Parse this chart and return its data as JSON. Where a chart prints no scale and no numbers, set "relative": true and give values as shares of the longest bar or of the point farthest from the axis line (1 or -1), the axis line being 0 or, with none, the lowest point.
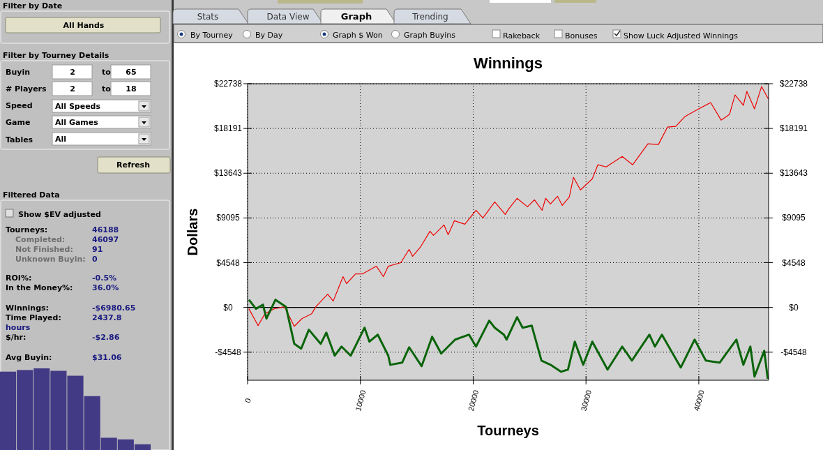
{
  "chart_data": [
    {
      "type": "line",
      "title": "Winnings",
      "xlabel": "Tourneys",
      "ylabel": "Dollars",
      "grid": true,
      "line_style": "solid",
      "marker": "none",
      "xlim": [
        0,
        46188
      ],
      "xticks": [
        0,
        10000,
        20000,
        30000,
        40000
      ],
      "ylim": [
        -7400,
        22738
      ],
      "yticks": [
        {
          "value": -4548,
          "label": "-$4548"
        },
        {
          "value": 0,
          "label": "$0"
        },
        {
          "value": 4548,
          "label": "$4548"
        },
        {
          "value": 9095,
          "label": "$9095"
        },
        {
          "value": 13643,
          "label": "$13643"
        },
        {
          "value": 18191,
          "label": "$18191"
        },
        {
          "value": 22738,
          "label": "$22738"
        }
      ],
      "y2lim": [
        -7400,
        22738
      ],
      "y2ticks": [
        {
          "value": -4548,
          "label": "-$4548"
        },
        {
          "value": 0,
          "label": "$0"
        },
        {
          "value": 4548,
          "label": "$4548"
        },
        {
          "value": 9095,
          "label": "$9095"
        },
        {
          "value": 13643,
          "label": "$13643"
        },
        {
          "value": 18191,
          "label": "$18191"
        },
        {
          "value": 22738,
          "label": "$22738"
        }
      ],
      "ref_lines": [
        {
          "axis": "y",
          "value": 0,
          "color": "#000000",
          "line_style": "solid"
        }
      ],
      "series": [
        {
          "color": "#ee0000",
          "x": [
            120,
            930,
            1540,
            2350,
            3270,
            4140,
            4810,
            5680,
            6050,
            7100,
            7590,
            8460,
            8770,
            9570,
            10190,
            11420,
            12040,
            12470,
            13580,
            14320,
            14630,
            15310,
            16170,
            16480,
            17410,
            17780,
            18330,
            19260,
            20250,
            20860,
            21910,
            22840,
            23150,
            23890,
            24810,
            25430,
            26110,
            26420,
            26850,
            27470,
            27900,
            28520,
            28890,
            29510,
            30560,
            31050,
            31790,
            33210,
            34140,
            35490,
            36420,
            37220,
            37960,
            38770,
            40000,
            41050,
            41980,
            42720,
            43210,
            43950,
            44260,
            44940,
            45560,
            46170
          ],
          "values": [
            -140,
            -1850,
            -640,
            -140,
            70,
            -1920,
            -1140,
            -640,
            70,
            1350,
            640,
            3130,
            2420,
            3410,
            3410,
            4190,
            3130,
            4190,
            4550,
            5900,
            5190,
            6110,
            7750,
            7320,
            8390,
            7390,
            8810,
            8460,
            9880,
            9100,
            10730,
            9450,
            10020,
            11090,
            10230,
            10940,
            9880,
            11090,
            10520,
            11300,
            10370,
            11230,
            13220,
            11940,
            13080,
            14500,
            14280,
            15350,
            14500,
            16630,
            16560,
            18330,
            18400,
            19400,
            20180,
            20820,
            19040,
            19610,
            21600,
            20540,
            21960,
            20180,
            22450,
            21180
          ]
        },
        {
          "color": "#0a640a",
          "x": [
            120,
            740,
            1360,
            1670,
            2470,
            3400,
            4140,
            4750,
            5430,
            6480,
            6980,
            7720,
            8330,
            9140,
            10370,
            10800,
            11540,
            12470,
            12650,
            13700,
            14320,
            15430,
            16360,
            17160,
            18400,
            19630,
            20250,
            21420,
            21910,
            22720,
            22960,
            23890,
            24380,
            25190,
            26050,
            26850,
            27780,
            28400,
            29010,
            29750,
            30560,
            31910,
            33210,
            34070,
            35620,
            36110,
            36730,
            38400,
            39630,
            40620,
            41850,
            43330,
            43950,
            44570,
            44940,
            45800,
            46110
          ],
          "values": [
            780,
            -140,
            280,
            -1140,
            780,
            70,
            -3700,
            -4190,
            -2270,
            -3700,
            -2560,
            -4900,
            -3980,
            -4900,
            -2060,
            -3480,
            -2770,
            -4900,
            -5830,
            -5610,
            -4050,
            -5970,
            -2980,
            -4690,
            -3270,
            -2770,
            -3980,
            -1350,
            -2060,
            -2770,
            -3270,
            -990,
            -2060,
            -1850,
            -5400,
            -5830,
            -6540,
            -6320,
            -3480,
            -5830,
            -3480,
            -6320,
            -3980,
            -5400,
            -2770,
            -3980,
            -2770,
            -6110,
            -3270,
            -5400,
            -5610,
            -3270,
            -5830,
            -3980,
            -7030,
            -4410,
            -7250
          ]
        }
      ]
    },
    {
      "type": "other",
      "annotations": [
        "Filter by Date",
        "All Hands",
        "Filter by Tourney Details",
        "Buyin",
        "2",
        "to",
        "65",
        "# Players",
        "2",
        "to",
        "18",
        "Speed",
        "All Speeds",
        "Game",
        "All Games",
        "Tables",
        "All",
        "Refresh",
        "Filtered Data",
        "Show $EV adjusted",
        "Tourneys:",
        "46188",
        "Completed:",
        "46097",
        "Not Finished:",
        "91",
        "Unknown Buyin:",
        "0",
        "ROI%:",
        "-0.5%",
        "In the Money%:",
        "36.0%",
        "Winnings:",
        "-$6980.65",
        "Time Played:",
        "2437.8",
        "hours",
        "$/hr:",
        "-$2.86",
        "Avg Buyin:",
        "$31.06",
        "Stats",
        "Data View",
        "Graph",
        "Trending",
        "By Tourney",
        "By Day",
        "Graph $ Won",
        "Graph Buyins",
        "Rakeback",
        "Bonuses",
        "Show Luck Adjusted Winnings"
      ]
    },
    {
      "type": "bar",
      "relative": true,
      "color": "#433a85",
      "categories": [
        null,
        null,
        null,
        null,
        null,
        null,
        null,
        null,
        null
      ],
      "values": [
        0.96,
        0.98,
        1,
        0.97,
        0.91,
        0.66,
        0.15,
        0.13,
        0.07
      ]
    }
  ]
}
